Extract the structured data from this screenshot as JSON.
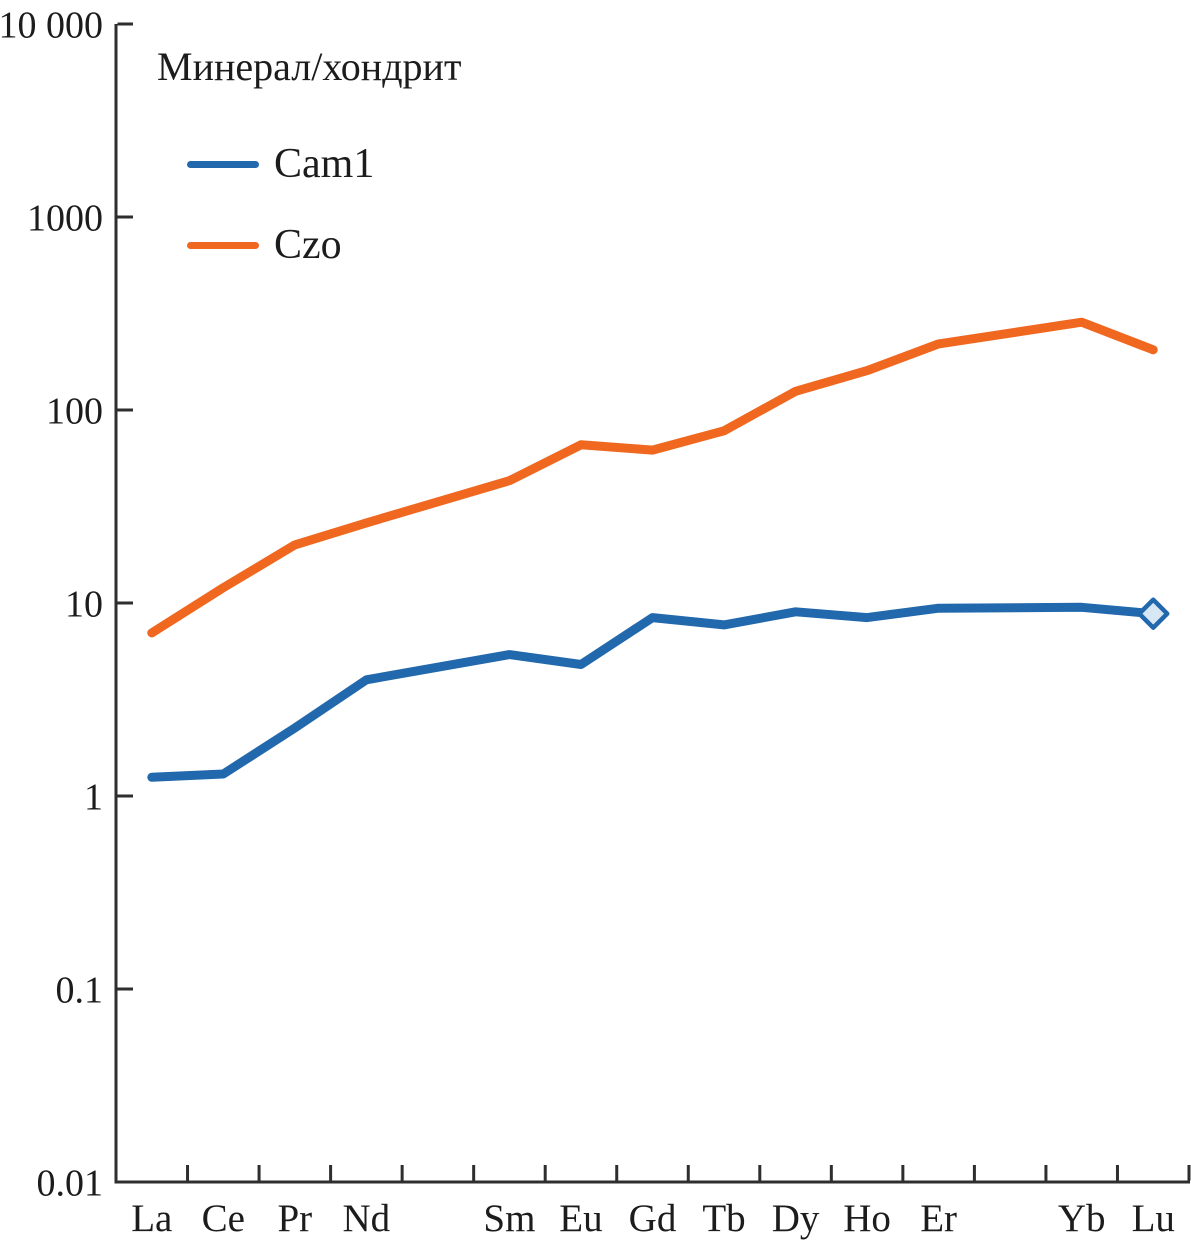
{
  "chart_data": {
    "type": "line",
    "title": "Минерал/хондрит",
    "x_categories": [
      "La",
      "Ce",
      "Pr",
      "Nd",
      "",
      "Sm",
      "Eu",
      "Gd",
      "Tb",
      "Dy",
      "Ho",
      "Er",
      "",
      "Yb",
      "Lu"
    ],
    "y_scale": "log",
    "ylim": [
      0.01,
      10000
    ],
    "grid": false,
    "legend_position": "top-left-inside",
    "y_ticks": [
      {
        "value": 10000,
        "label": "10 000"
      },
      {
        "value": 1000,
        "label": "1000"
      },
      {
        "value": 100,
        "label": "100"
      },
      {
        "value": 10,
        "label": "10"
      },
      {
        "value": 1,
        "label": "1"
      },
      {
        "value": 0.1,
        "label": "0.1"
      },
      {
        "value": 0.01,
        "label": "0.01"
      }
    ],
    "series": [
      {
        "name": "Cam1",
        "color": "#2268ac",
        "marker_fill": "#d7e7f4",
        "end_marker": "open-diamond",
        "values": [
          1.25,
          1.3,
          2.25,
          4.0,
          null,
          5.4,
          4.8,
          8.4,
          7.7,
          9.0,
          8.4,
          9.4,
          null,
          9.5,
          8.8
        ]
      },
      {
        "name": "Czo",
        "color": "#f0671f",
        "marker_fill": null,
        "end_marker": null,
        "values": [
          7,
          12,
          20,
          26,
          null,
          43,
          66,
          62,
          78,
          125,
          160,
          220,
          null,
          285,
          205
        ]
      }
    ],
    "axis_color": "#2e2e2e",
    "text_color": "#1c1c1c"
  }
}
